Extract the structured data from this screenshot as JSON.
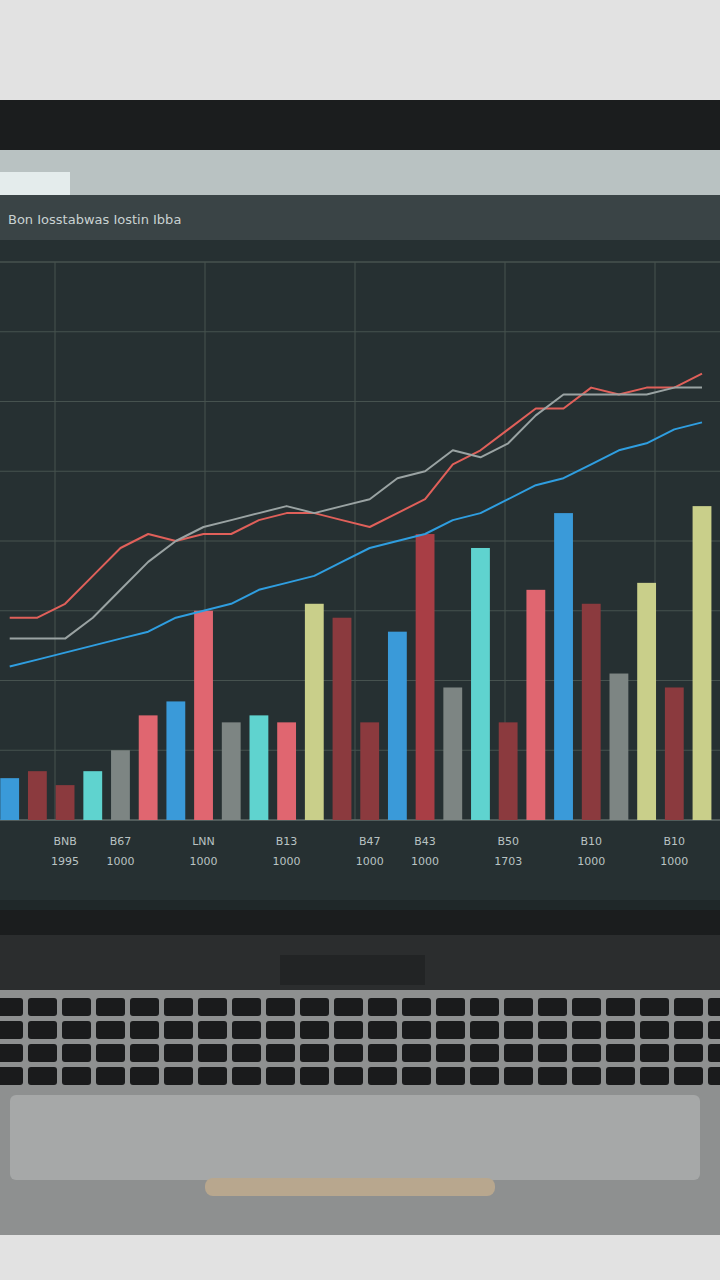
{
  "chart_data": {
    "type": "bar",
    "title": "Bon Iosstabwas Iostin Ibba",
    "categories": [
      null,
      null,
      "BNB\n1995",
      null,
      "B67\n1000",
      null,
      null,
      "LNN\n1000",
      null,
      null,
      "B13\n1000",
      null,
      null,
      "B47\n1000",
      null,
      "B43\n1000",
      null,
      null,
      "B50\n1703",
      null,
      null,
      "B10\n1000",
      null,
      null,
      "B10\n1000",
      null
    ],
    "series": [
      {
        "type": "bar",
        "values": [
          0.6,
          0.7,
          0.5,
          0.7,
          1.0,
          1.5,
          1.7,
          3.0,
          1.4,
          1.5,
          1.4,
          3.1,
          2.9,
          1.4,
          2.7,
          4.1,
          1.9,
          3.9,
          1.4,
          3.3,
          4.4,
          3.1,
          2.1,
          3.4,
          1.9,
          4.5
        ],
        "colors": [
          "#3a9ad9",
          "#8b3a3e",
          "#8b3a3e",
          "#5fd3cf",
          "#7d8583",
          "#e06670",
          "#3a9ad9",
          "#e06670",
          "#7d8583",
          "#5fd3cf",
          "#e06670",
          "#c9cf8a",
          "#8b3a3e",
          "#8b3a3e",
          "#3a9ad9",
          "#a83e45",
          "#7d8583",
          "#5fd3cf",
          "#8b3a3e",
          "#e06670",
          "#3a9ad9",
          "#8b3a3e",
          "#7d8583",
          "#c9cf8a",
          "#8b3a3e",
          "#c9cf8a"
        ]
      },
      {
        "type": "line",
        "color": "#e0605a",
        "values": [
          2.9,
          2.9,
          3.1,
          3.5,
          3.9,
          4.1,
          4.0,
          4.1,
          4.1,
          4.3,
          4.4,
          4.4,
          4.3,
          4.2,
          4.4,
          4.6,
          5.1,
          5.3,
          5.6,
          5.9,
          5.9,
          6.2,
          6.1,
          6.2,
          6.2,
          6.4
        ]
      },
      {
        "type": "line",
        "color": "#9aa3a3",
        "values": [
          2.6,
          2.6,
          2.6,
          2.9,
          3.3,
          3.7,
          4.0,
          4.2,
          4.3,
          4.4,
          4.5,
          4.4,
          4.5,
          4.6,
          4.9,
          5.0,
          5.3,
          5.2,
          5.4,
          5.8,
          6.1,
          6.1,
          6.1,
          6.1,
          6.2,
          6.2
        ]
      },
      {
        "type": "line",
        "color": "#2f9ee0",
        "values": [
          2.2,
          2.3,
          2.4,
          2.5,
          2.6,
          2.7,
          2.9,
          3.0,
          3.1,
          3.3,
          3.4,
          3.5,
          3.7,
          3.9,
          4.0,
          4.1,
          4.3,
          4.4,
          4.6,
          4.8,
          4.9,
          5.1,
          5.3,
          5.4,
          5.6,
          5.7
        ]
      }
    ],
    "ylim": [
      0,
      8
    ],
    "yticks": [
      0,
      1,
      2,
      3,
      4,
      5,
      6,
      7,
      8
    ],
    "grid": true,
    "tick_labels": "x"
  }
}
